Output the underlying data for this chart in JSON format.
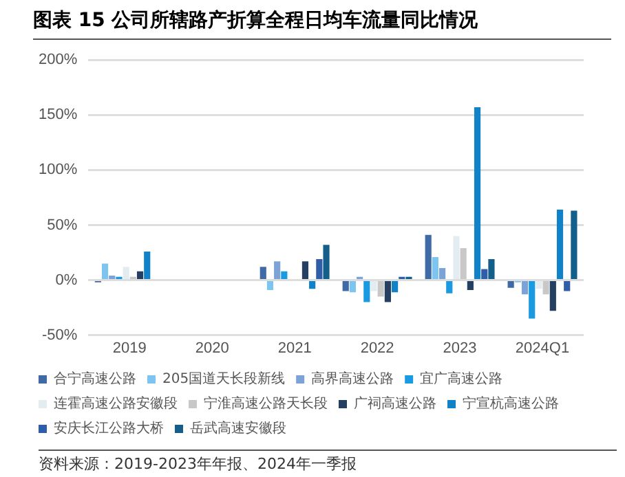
{
  "chart_data": {
    "type": "bar",
    "title": "图表 15 公司所辖路产折算全程日均车流量同比情况",
    "categories": [
      "2019",
      "2020",
      "2021",
      "2022",
      "2023",
      "2024Q1"
    ],
    "series": [
      {
        "name": "合宁高速公路",
        "color": "#3f6aa6",
        "values": [
          -2,
          null,
          12,
          -10,
          41,
          -7
        ]
      },
      {
        "name": "205国道天长段新线",
        "color": "#7ec4f0",
        "values": [
          15,
          null,
          -9,
          -11,
          21,
          -2
        ]
      },
      {
        "name": "高界高速公路",
        "color": "#7ba3d8",
        "values": [
          4,
          null,
          17,
          3,
          11,
          -13
        ]
      },
      {
        "name": "宜广高速公路",
        "color": "#1a9ae0",
        "values": [
          3,
          null,
          8,
          -20,
          -12,
          -35
        ]
      },
      {
        "name": "连霍高速公路安徽段",
        "color": "#e3ecf0",
        "values": [
          12,
          null,
          0,
          -10,
          40,
          -8
        ]
      },
      {
        "name": "宁淮高速公路天长段",
        "color": "#c8c8c8",
        "values": [
          3,
          null,
          0,
          -15,
          29,
          -13
        ]
      },
      {
        "name": "广祠高速公路",
        "color": "#253f62",
        "values": [
          8,
          null,
          17,
          -20,
          -9,
          -28
        ]
      },
      {
        "name": "宁宣杭高速公路",
        "color": "#1282c8",
        "values": [
          26,
          null,
          -8,
          -11,
          157,
          64
        ]
      },
      {
        "name": "安庆长江公路大桥",
        "color": "#2f5da8",
        "values": [
          null,
          null,
          19,
          3,
          10,
          -10
        ]
      },
      {
        "name": "岳武高速安徽段",
        "color": "#135f8a",
        "values": [
          null,
          null,
          32,
          3,
          19,
          63
        ]
      }
    ],
    "ylim": [
      -50,
      200
    ],
    "yticks": [
      {
        "value": -50,
        "label": "-50%"
      },
      {
        "value": 0,
        "label": "0%"
      },
      {
        "value": 50,
        "label": "50%"
      },
      {
        "value": 100,
        "label": "100%"
      },
      {
        "value": 150,
        "label": "150%"
      },
      {
        "value": 200,
        "label": "200%"
      }
    ],
    "grid": "y",
    "legend": "bottom",
    "annotations": [
      "资料来源：2019-2023年年报、2024年一季报"
    ]
  }
}
